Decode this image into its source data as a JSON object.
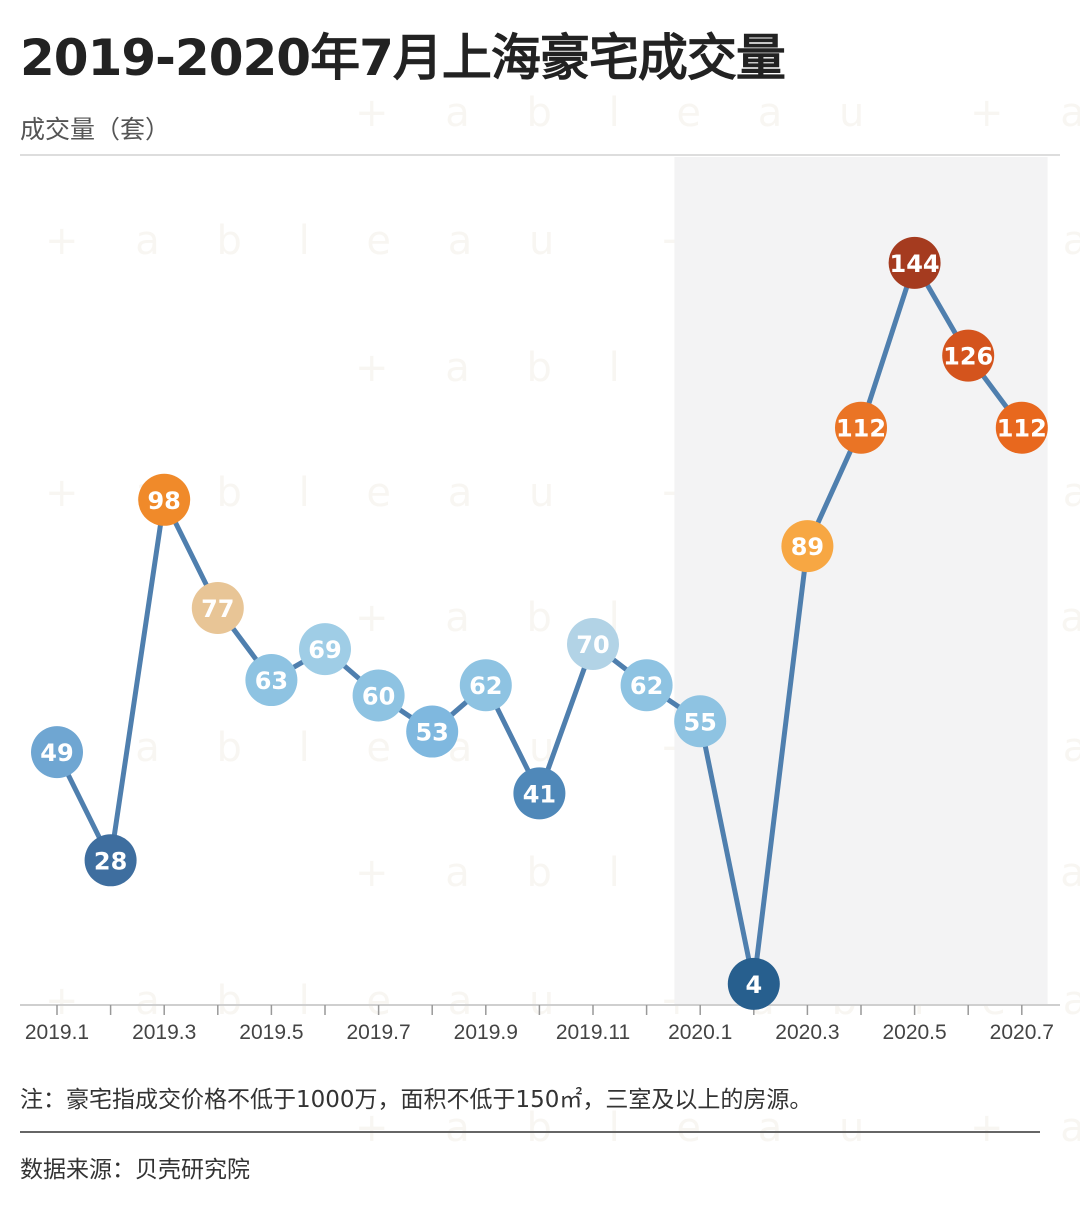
{
  "title": "2019-2020年7月上海豪宅成交量",
  "unit_label": "成交量（套）",
  "note": "注：豪宅指成交价格不低于1000万，面积不低于150㎡，三室及以上的房源。",
  "source": "数据来源：贝壳研究院",
  "watermark_text": "+ a b l e a u",
  "chart_data": {
    "type": "line",
    "title": "2019-2020年7月上海豪宅成交量",
    "ylabel": "成交量（套）",
    "xlabel": "",
    "categories": [
      "2019.1",
      "2019.2",
      "2019.3",
      "2019.4",
      "2019.5",
      "2019.6",
      "2019.7",
      "2019.8",
      "2019.9",
      "2019.10",
      "2019.11",
      "2019.12",
      "2020.1",
      "2020.2",
      "2020.3",
      "2020.4",
      "2020.5",
      "2020.6",
      "2020.7"
    ],
    "values": [
      49,
      28,
      98,
      77,
      63,
      69,
      60,
      53,
      62,
      41,
      70,
      62,
      55,
      4,
      89,
      112,
      144,
      126,
      112
    ],
    "tick_labels": [
      "2019.1",
      "2019.3",
      "2019.5",
      "2019.7",
      "2019.9",
      "2019.11",
      "2020.1",
      "2020.3",
      "2020.5",
      "2020.7"
    ],
    "ylim": [
      0,
      155
    ],
    "highlight_range": [
      "2020.1",
      "2020.7"
    ],
    "grid": false,
    "line_color": "#4f7fae",
    "marker_colors": [
      "#6fa6d2",
      "#3e6e9f",
      "#f08a2a",
      "#e8c596",
      "#8ec3e2",
      "#9fcde6",
      "#8ec3e2",
      "#7fb8df",
      "#8ec3e2",
      "#4f88b9",
      "#b2d3e6",
      "#8ec3e2",
      "#8ec3e2",
      "#275f8e",
      "#f7a743",
      "#ea7425",
      "#a53b1f",
      "#d4541d",
      "#e8681e"
    ]
  }
}
